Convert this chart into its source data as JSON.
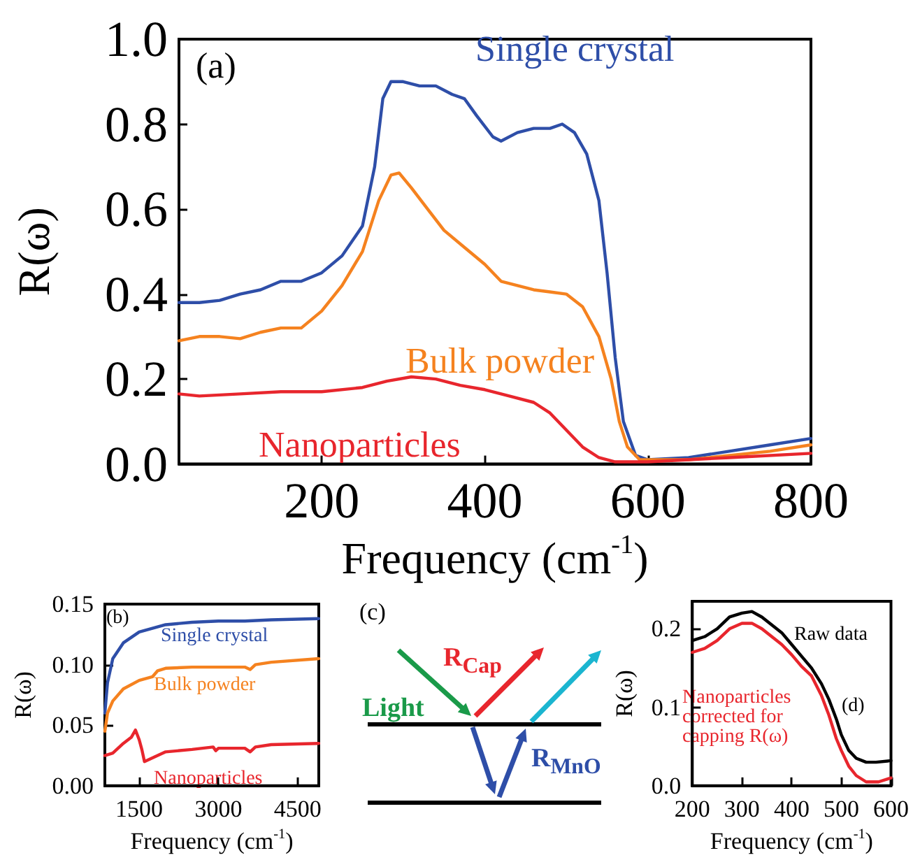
{
  "chart_data": [
    {
      "type": "line",
      "xlabel": "Frequency (cm$^{-1}$)",
      "ylabel": "R(ω)",
      "annotations": [
        "(a)"
      ],
      "xlim": [
        25,
        800
      ],
      "xticks": [
        200,
        400,
        600,
        800
      ],
      "ylim": [
        0,
        1
      ],
      "yticks": [
        {
          "value": 0,
          "label": "0.0"
        },
        {
          "value": 0.2,
          "label": "0.2"
        },
        {
          "value": 0.4,
          "label": "0.4"
        },
        {
          "value": 0.6,
          "label": "0.6"
        },
        {
          "value": 0.8,
          "label": "0.8"
        },
        {
          "value": 1,
          "label": "1.0"
        }
      ],
      "grid": false,
      "marker": "none",
      "line_style": "solid",
      "series": [
        {
          "name": "Single crystal",
          "color": "#2e4ea8",
          "x": [
            25,
            50,
            75,
            100,
            125,
            150,
            175,
            200,
            225,
            250,
            265,
            275,
            285,
            300,
            320,
            340,
            360,
            375,
            390,
            410,
            420,
            440,
            460,
            480,
            495,
            510,
            525,
            540,
            550,
            560,
            570,
            585,
            600,
            650,
            700,
            750,
            800
          ],
          "values": [
            0.38,
            0.38,
            0.385,
            0.4,
            0.41,
            0.43,
            0.43,
            0.45,
            0.49,
            0.56,
            0.7,
            0.86,
            0.9,
            0.9,
            0.89,
            0.89,
            0.87,
            0.86,
            0.82,
            0.77,
            0.76,
            0.78,
            0.79,
            0.79,
            0.8,
            0.78,
            0.73,
            0.62,
            0.45,
            0.25,
            0.1,
            0.02,
            0.01,
            0.015,
            0.03,
            0.045,
            0.06
          ]
        },
        {
          "name": "Bulk powder",
          "color": "#f5821f",
          "x": [
            25,
            50,
            75,
            100,
            125,
            150,
            175,
            200,
            225,
            250,
            270,
            285,
            295,
            310,
            330,
            350,
            375,
            400,
            420,
            440,
            460,
            480,
            500,
            520,
            540,
            555,
            565,
            575,
            590,
            620,
            650,
            700,
            750,
            800
          ],
          "values": [
            0.29,
            0.3,
            0.3,
            0.295,
            0.31,
            0.32,
            0.32,
            0.36,
            0.42,
            0.5,
            0.62,
            0.68,
            0.685,
            0.65,
            0.6,
            0.55,
            0.51,
            0.47,
            0.43,
            0.42,
            0.41,
            0.405,
            0.4,
            0.37,
            0.3,
            0.2,
            0.1,
            0.04,
            0.01,
            0.01,
            0.01,
            0.02,
            0.03,
            0.045
          ]
        },
        {
          "name": "Nanoparticles",
          "color": "#e8262d",
          "x": [
            25,
            50,
            100,
            150,
            200,
            250,
            280,
            310,
            340,
            370,
            400,
            430,
            460,
            480,
            500,
            520,
            540,
            560,
            600,
            650,
            700,
            800
          ],
          "values": [
            0.165,
            0.16,
            0.165,
            0.17,
            0.17,
            0.18,
            0.195,
            0.205,
            0.2,
            0.185,
            0.175,
            0.16,
            0.145,
            0.12,
            0.08,
            0.04,
            0.015,
            0.005,
            0.005,
            0.01,
            0.015,
            0.025
          ]
        }
      ]
    },
    {
      "type": "line",
      "xlabel": "Frequency (cm$^{-1}$)",
      "ylabel": "R(ω)",
      "annotations": [
        "(b)"
      ],
      "xlim": [
        850,
        4900
      ],
      "xticks": [
        1500,
        3000,
        4500
      ],
      "ylim": [
        0,
        0.15
      ],
      "yticks": [
        {
          "value": 0,
          "label": "0.00"
        },
        {
          "value": 0.05,
          "label": "0.05"
        },
        {
          "value": 0.1,
          "label": "0.10"
        },
        {
          "value": 0.15,
          "label": "0.15"
        }
      ],
      "grid": false,
      "marker": "none",
      "line_style": "solid",
      "series": [
        {
          "name": "Single crystal",
          "color": "#2e4ea8",
          "x": [
            850,
            900,
            1000,
            1200,
            1500,
            2000,
            2500,
            3000,
            3500,
            4000,
            4900
          ],
          "values": [
            0.06,
            0.085,
            0.105,
            0.118,
            0.127,
            0.133,
            0.135,
            0.136,
            0.136,
            0.137,
            0.138
          ]
        },
        {
          "name": "Bulk powder",
          "color": "#f5821f",
          "x": [
            850,
            900,
            1000,
            1200,
            1500,
            1750,
            1850,
            2000,
            2500,
            3000,
            3500,
            3600,
            3700,
            4000,
            4900
          ],
          "values": [
            0.045,
            0.06,
            0.07,
            0.08,
            0.087,
            0.09,
            0.095,
            0.097,
            0.098,
            0.098,
            0.098,
            0.096,
            0.1,
            0.102,
            0.105
          ]
        },
        {
          "name": "Nanoparticles",
          "color": "#e8262d",
          "x": [
            850,
            1000,
            1200,
            1350,
            1430,
            1500,
            1550,
            1600,
            1700,
            2000,
            2500,
            2900,
            2950,
            3000,
            3500,
            3600,
            3700,
            4000,
            4900
          ],
          "values": [
            0.025,
            0.027,
            0.035,
            0.04,
            0.046,
            0.038,
            0.03,
            0.02,
            0.022,
            0.028,
            0.03,
            0.032,
            0.029,
            0.031,
            0.031,
            0.028,
            0.032,
            0.034,
            0.035
          ]
        }
      ]
    },
    {
      "type": "other",
      "annotations": [
        "(c)",
        "Light",
        "R$_{Cap}$",
        "R$_{MnO}$"
      ]
    },
    {
      "type": "line",
      "xlabel": "Frequency (cm$^{-1}$)",
      "ylabel": "R(ω)",
      "annotations": [
        "(d)"
      ],
      "xlim": [
        200,
        600
      ],
      "xticks": [
        200,
        300,
        400,
        500,
        600
      ],
      "ylim": [
        0,
        0.235
      ],
      "yticks": [
        {
          "value": 0,
          "label": "0.0"
        },
        {
          "value": 0.1,
          "label": "0.1"
        },
        {
          "value": 0.2,
          "label": "0.2"
        }
      ],
      "grid": false,
      "marker": "none",
      "line_style": "solid",
      "series": [
        {
          "name": "Raw data",
          "color": "#000000",
          "x": [
            200,
            225,
            250,
            275,
            300,
            320,
            340,
            360,
            380,
            400,
            420,
            440,
            460,
            475,
            490,
            500,
            515,
            530,
            550,
            570,
            600
          ],
          "values": [
            0.185,
            0.19,
            0.2,
            0.215,
            0.22,
            0.222,
            0.215,
            0.205,
            0.195,
            0.18,
            0.165,
            0.15,
            0.13,
            0.11,
            0.085,
            0.065,
            0.045,
            0.035,
            0.03,
            0.03,
            0.032
          ]
        },
        {
          "name": "Nanoparticles corrected for capping R(ω)",
          "color": "#e8262d",
          "x": [
            200,
            225,
            250,
            275,
            300,
            320,
            340,
            360,
            380,
            400,
            420,
            440,
            460,
            475,
            490,
            500,
            515,
            530,
            550,
            575,
            600
          ],
          "values": [
            0.17,
            0.175,
            0.185,
            0.2,
            0.207,
            0.207,
            0.2,
            0.19,
            0.18,
            0.167,
            0.152,
            0.14,
            0.115,
            0.09,
            0.06,
            0.045,
            0.025,
            0.013,
            0.005,
            0.005,
            0.01
          ]
        }
      ]
    }
  ]
}
